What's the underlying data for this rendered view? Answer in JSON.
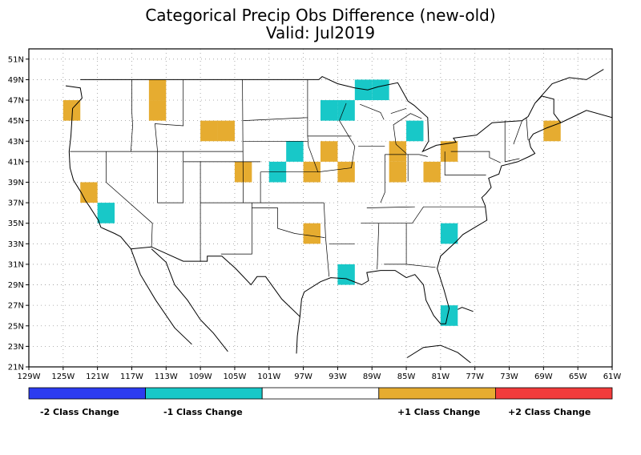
{
  "header": {
    "title": "Categorical Precip Obs Difference (new-old)",
    "subtitle": "Valid: Jul2019"
  },
  "map": {
    "lon_range": [
      -129,
      -61
    ],
    "lat_range": [
      21,
      52
    ],
    "lon_ticks": [
      "129W",
      "125W",
      "121W",
      "117W",
      "113W",
      "109W",
      "105W",
      "101W",
      "97W",
      "93W",
      "89W",
      "85W",
      "81W",
      "77W",
      "73W",
      "69W",
      "65W",
      "61W"
    ],
    "lat_ticks": [
      "21N",
      "23N",
      "25N",
      "27N",
      "29N",
      "31N",
      "33N",
      "35N",
      "37N",
      "39N",
      "41N",
      "43N",
      "45N",
      "47N",
      "49N",
      "51N"
    ],
    "grid": "dotted",
    "cell_size_deg": 2
  },
  "colors": {
    "minus2": "#2c3cf0",
    "minus1": "#18c8c8",
    "zero": "#ffffff",
    "plus1": "#e6ac30",
    "plus2": "#f23c3c"
  },
  "chart_data": {
    "type": "heatmap",
    "cells": [
      {
        "lon": -124,
        "lat": 46,
        "value": 1
      },
      {
        "lon": -114,
        "lat": 48,
        "value": 1
      },
      {
        "lon": -114,
        "lat": 46,
        "value": 1
      },
      {
        "lon": -108,
        "lat": 44,
        "value": 1
      },
      {
        "lon": -106,
        "lat": 44,
        "value": 1
      },
      {
        "lon": -104,
        "lat": 40,
        "value": 1
      },
      {
        "lon": -122,
        "lat": 38,
        "value": 1
      },
      {
        "lon": -120,
        "lat": 36,
        "value": -1
      },
      {
        "lon": -100,
        "lat": 40,
        "value": -1
      },
      {
        "lon": -98,
        "lat": 42,
        "value": -1
      },
      {
        "lon": -96,
        "lat": 40,
        "value": 1
      },
      {
        "lon": -94,
        "lat": 42,
        "value": 1
      },
      {
        "lon": -92,
        "lat": 40,
        "value": 1
      },
      {
        "lon": -94,
        "lat": 46,
        "value": -1
      },
      {
        "lon": -92,
        "lat": 46,
        "value": -1
      },
      {
        "lon": -90,
        "lat": 48,
        "value": -1
      },
      {
        "lon": -88,
        "lat": 48,
        "value": -1
      },
      {
        "lon": -84,
        "lat": 44,
        "value": -1
      },
      {
        "lon": -86,
        "lat": 42,
        "value": 1
      },
      {
        "lon": -86,
        "lat": 40,
        "value": 1
      },
      {
        "lon": -82,
        "lat": 40,
        "value": 1
      },
      {
        "lon": -80,
        "lat": 42,
        "value": 1
      },
      {
        "lon": -68,
        "lat": 44,
        "value": 1
      },
      {
        "lon": -96,
        "lat": 34,
        "value": 1
      },
      {
        "lon": -80,
        "lat": 34,
        "value": -1
      },
      {
        "lon": -92,
        "lat": 30,
        "value": -1
      },
      {
        "lon": -80,
        "lat": 26,
        "value": -1
      }
    ]
  },
  "legend": {
    "items": [
      {
        "label": "-2 Class Change",
        "color": "#2c3cf0"
      },
      {
        "label": "-1 Class Change",
        "color": "#18c8c8"
      },
      {
        "label": "",
        "color": "#ffffff"
      },
      {
        "label": "+1 Class Change",
        "color": "#e6ac30"
      },
      {
        "label": "+2 Class Change",
        "color": "#f23c3c"
      }
    ]
  }
}
